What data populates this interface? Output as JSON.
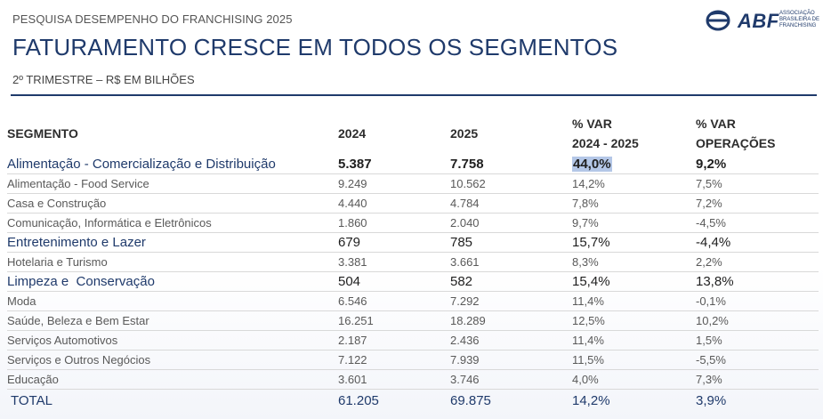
{
  "header": {
    "kicker": "PESQUISA DESEMPENHO DO FRANCHISING 2025",
    "title": "FATURAMENTO CRESCE EM TODOS OS SEGMENTOS",
    "subtitle": "2º TRIMESTRE – R$ EM BILHÕES"
  },
  "logo": {
    "name": "ABF",
    "line1": "ASSOCIAÇÃO",
    "line2": "BRASILEIRA DE",
    "line3": "FRANCHISING",
    "color": "#1f3a6b"
  },
  "table": {
    "headers": {
      "segment": "SEGMENTO",
      "y2024": "2024",
      "y2025": "2025",
      "var_line1": "% VAR",
      "var_line2": "2024 - 2025",
      "ops_line1": "% VAR",
      "ops_line2": "OPERAÇÕES"
    },
    "rows": [
      {
        "segment": "Alimentação - Comercialização e Distribuição",
        "y2024": "5.387",
        "y2025": "7.758",
        "var": "44,0%",
        "ops": "9,2%"
      },
      {
        "segment": "Alimentação - Food Service",
        "y2024": "9.249",
        "y2025": "10.562",
        "var": "14,2%",
        "ops": "7,5%"
      },
      {
        "segment": "Casa e Construção",
        "y2024": "4.440",
        "y2025": "4.784",
        "var": "7,8%",
        "ops": "7,2%"
      },
      {
        "segment": "Comunicação, Informática e Eletrônicos",
        "y2024": "1.860",
        "y2025": "2.040",
        "var": "9,7%",
        "ops": "-4,5%"
      },
      {
        "segment": "Entretenimento e Lazer",
        "y2024": "679",
        "y2025": "785",
        "var": "15,7%",
        "ops": "-4,4%"
      },
      {
        "segment": "Hotelaria e Turismo",
        "y2024": "3.381",
        "y2025": "3.661",
        "var": "8,3%",
        "ops": "2,2%"
      },
      {
        "segment": "Limpeza e  Conservação",
        "y2024": "504",
        "y2025": "582",
        "var": "15,4%",
        "ops": "13,8%"
      },
      {
        "segment": "Moda",
        "y2024": "6.546",
        "y2025": "7.292",
        "var": "11,4%",
        "ops": "-0,1%"
      },
      {
        "segment": "Saúde, Beleza e Bem Estar",
        "y2024": "16.251",
        "y2025": "18.289",
        "var": "12,5%",
        "ops": "10,2%"
      },
      {
        "segment": "Serviços Automotivos",
        "y2024": "2.187",
        "y2025": "2.436",
        "var": "11,4%",
        "ops": "1,5%"
      },
      {
        "segment": "Serviços e Outros Negócios",
        "y2024": "7.122",
        "y2025": "7.939",
        "var": "11,5%",
        "ops": "-5,5%"
      },
      {
        "segment": "Educação",
        "y2024": "3.601",
        "y2025": "3.746",
        "var": "4,0%",
        "ops": "7,3%"
      }
    ],
    "total": {
      "segment": "TOTAL",
      "y2024": "61.205",
      "y2025": "69.875",
      "var": "14,2%",
      "ops": "3,9%"
    }
  }
}
